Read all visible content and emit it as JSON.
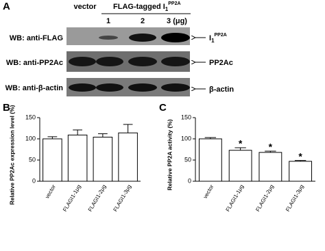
{
  "blot": {
    "panel_label": "A",
    "header_vector": "vector",
    "header_group": [
      "FLAG-tagged I",
      "1",
      "PP2A"
    ],
    "lanes": [
      "1",
      "2",
      "3 (μg)"
    ],
    "rows": [
      {
        "label": "WB: anti-FLAG",
        "target": [
          "I",
          "1",
          "PP2A"
        ]
      },
      {
        "label": "WB: anti-PP2Ac",
        "target": [
          "PP2Ac"
        ]
      },
      {
        "label": "WB: anti-β-actin",
        "target": [
          "β-actin"
        ]
      }
    ]
  },
  "chart_data": [
    {
      "type": "bar",
      "panel_label": "B",
      "y_label": "Relative PP2Ac expression level (%)",
      "categories": [
        "vector",
        "FLAGI1-1μg",
        "FLAGI1-2μg",
        "FLAGI1-3μg"
      ],
      "values": [
        100,
        109,
        104,
        114
      ],
      "errors": [
        5,
        12,
        8,
        20
      ],
      "color": "#ffffff",
      "ylim": [
        0,
        150
      ],
      "yticks": [
        0,
        50,
        100,
        150
      ]
    },
    {
      "type": "bar",
      "panel_label": "C",
      "y_label": "Relative PP2A activity (%)",
      "categories": [
        "vector",
        "FLAGI1-1μg",
        "FLAGI1-2μg",
        "FLAGI1-3μg"
      ],
      "values": [
        100,
        73,
        68,
        47
      ],
      "errors": [
        3,
        6,
        3,
        2
      ],
      "significance": [
        null,
        "*",
        "*",
        "*"
      ],
      "color": "#ffffff",
      "ylim": [
        0,
        150
      ],
      "yticks": [
        0,
        50,
        100,
        150
      ]
    }
  ]
}
